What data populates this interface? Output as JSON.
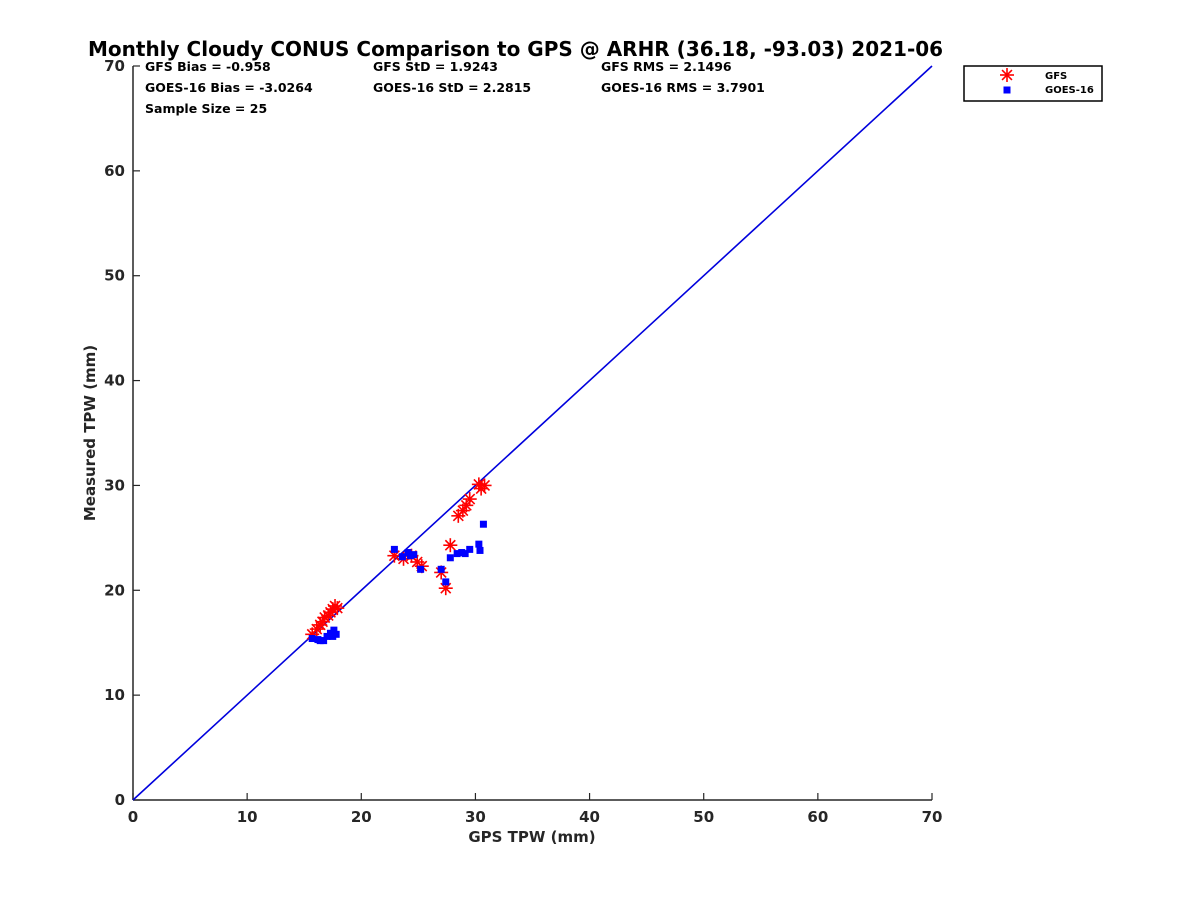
{
  "chart_data": {
    "type": "scatter",
    "title": "Monthly Cloudy CONUS Comparison to GPS @ ARHR (36.18, -93.03) 2021-06",
    "xlabel": "GPS TPW (mm)",
    "ylabel": "Measured TPW (mm)",
    "xlim": [
      0,
      70
    ],
    "ylim": [
      0,
      70
    ],
    "xticks": [
      "0",
      "10",
      "20",
      "30",
      "40",
      "50",
      "60",
      "70"
    ],
    "yticks": [
      "0",
      "10",
      "20",
      "30",
      "40",
      "50",
      "60",
      "70"
    ],
    "grid": false,
    "legend_position": "outside-top-right",
    "stats": [
      [
        "GFS Bias = -0.958",
        "GFS StD = 1.9243",
        "GFS RMS = 2.1496"
      ],
      [
        "GOES-16 Bias = -3.0264",
        "GOES-16 StD = 2.2815",
        "GOES-16 RMS = 3.7901"
      ],
      [
        "Sample Size = 25"
      ]
    ],
    "reference_line": {
      "x": [
        0,
        70
      ],
      "y": [
        0,
        70
      ],
      "color": "#0000dd"
    },
    "series": [
      {
        "name": "GFS",
        "marker": "asterisk",
        "color": "#ff0000",
        "points": [
          [
            15.7,
            15.8
          ],
          [
            16.1,
            16.3
          ],
          [
            16.4,
            16.7
          ],
          [
            16.6,
            17.0
          ],
          [
            16.8,
            17.4
          ],
          [
            17.1,
            17.6
          ],
          [
            17.3,
            17.9
          ],
          [
            17.5,
            18.2
          ],
          [
            17.7,
            18.5
          ],
          [
            17.9,
            18.3
          ],
          [
            22.9,
            23.3
          ],
          [
            23.7,
            23.0
          ],
          [
            24.4,
            23.3
          ],
          [
            24.9,
            22.7
          ],
          [
            25.3,
            22.3
          ],
          [
            27.0,
            21.7
          ],
          [
            27.4,
            20.2
          ],
          [
            27.8,
            24.3
          ],
          [
            28.5,
            27.1
          ],
          [
            28.9,
            27.6
          ],
          [
            29.2,
            28.1
          ],
          [
            29.5,
            28.7
          ],
          [
            30.3,
            30.1
          ],
          [
            30.5,
            29.7
          ],
          [
            30.8,
            30.0
          ]
        ]
      },
      {
        "name": "GOES-16",
        "marker": "square",
        "color": "#0000ff",
        "points": [
          [
            15.7,
            15.4
          ],
          [
            16.4,
            15.2
          ],
          [
            16.7,
            15.2
          ],
          [
            17.0,
            15.6
          ],
          [
            17.3,
            15.9
          ],
          [
            17.6,
            16.2
          ],
          [
            17.8,
            15.8
          ],
          [
            22.9,
            23.9
          ],
          [
            23.6,
            23.2
          ],
          [
            24.1,
            23.6
          ],
          [
            24.6,
            23.4
          ],
          [
            25.2,
            22.0
          ],
          [
            27.0,
            22.0
          ],
          [
            27.4,
            20.8
          ],
          [
            27.8,
            23.1
          ],
          [
            28.4,
            23.5
          ],
          [
            28.8,
            23.6
          ],
          [
            29.1,
            23.5
          ],
          [
            29.5,
            23.9
          ],
          [
            30.3,
            24.4
          ],
          [
            30.4,
            23.8
          ],
          [
            30.7,
            26.3
          ],
          [
            24.3,
            23.3
          ],
          [
            17.5,
            15.6
          ],
          [
            16.2,
            15.3
          ]
        ]
      }
    ]
  }
}
